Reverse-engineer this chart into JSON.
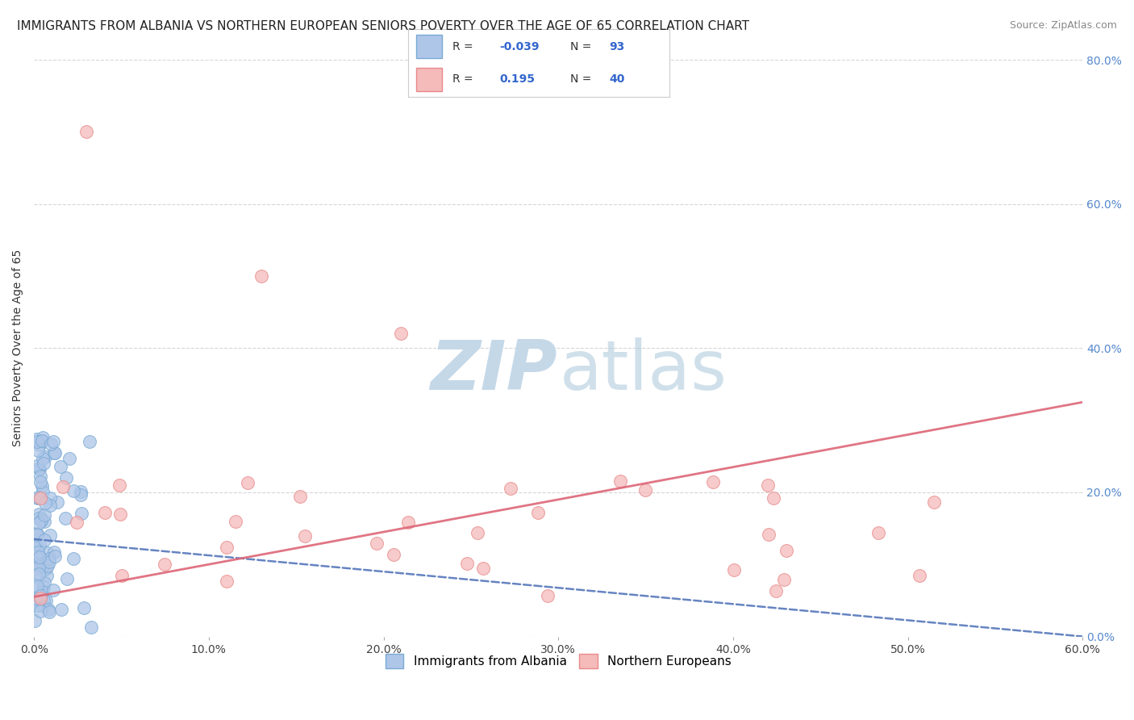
{
  "title": "IMMIGRANTS FROM ALBANIA VS NORTHERN EUROPEAN SENIORS POVERTY OVER THE AGE OF 65 CORRELATION CHART",
  "source": "Source: ZipAtlas.com",
  "ylabel": "Seniors Poverty Over the Age of 65",
  "blue_R": -0.039,
  "blue_N": 93,
  "pink_R": 0.195,
  "pink_N": 40,
  "blue_color": "#aec6e8",
  "blue_edge": "#7aaad4",
  "pink_color": "#f5baba",
  "pink_edge": "#e88a8a",
  "blue_line_color": "#5577bb",
  "pink_line_color": "#dd6677",
  "watermark_zip_color": "#c5d8e8",
  "watermark_atlas_color": "#aac8dc",
  "xlim": [
    0.0,
    0.6
  ],
  "ylim": [
    0.0,
    0.8
  ],
  "xticks": [
    0.0,
    0.1,
    0.2,
    0.3,
    0.4,
    0.5,
    0.6
  ],
  "yticks": [
    0.0,
    0.2,
    0.4,
    0.6,
    0.8
  ],
  "legend_label_blue": "Immigrants from Albania",
  "legend_label_pink": "Northern Europeans",
  "blue_line_start_y": 0.135,
  "blue_line_end_y": 0.0,
  "pink_line_start_y": 0.055,
  "pink_line_end_y": 0.325,
  "title_fontsize": 11,
  "axis_label_fontsize": 10,
  "tick_fontsize": 10,
  "legend_fontsize": 11,
  "source_fontsize": 9
}
